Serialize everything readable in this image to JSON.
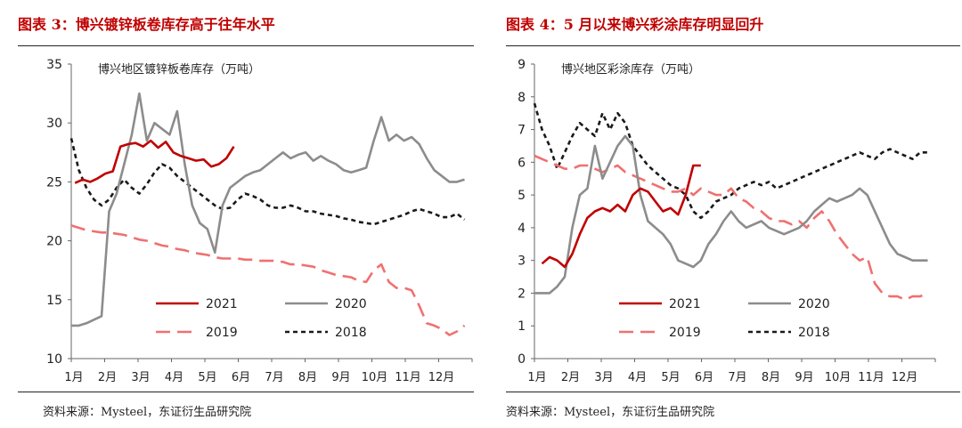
{
  "panels": [
    {
      "title": "图表 3：博兴镀锌板卷库存高于往年水平",
      "source": "资料来源：Mysteel，东证衍生品研究院",
      "chart_data": {
        "type": "line",
        "ylabel": "博兴地区镀锌板卷库存（万吨）",
        "ylim": [
          10,
          35
        ],
        "yticks": [
          10,
          15,
          20,
          25,
          30,
          35
        ],
        "xticks": [
          "1月",
          "2月",
          "3月",
          "4月",
          "5月",
          "6月",
          "7月",
          "8月",
          "9月",
          "10月",
          "11月",
          "12月"
        ],
        "xlim": [
          0,
          53
        ],
        "legend": [
          {
            "name": "2021",
            "color": "#c00000",
            "dash": "solid"
          },
          {
            "name": "2020",
            "color": "#8c8c8c",
            "dash": "solid"
          },
          {
            "name": "2019",
            "color": "#f07070",
            "dash": "long-dash"
          },
          {
            "name": "2018",
            "color": "#1a1a1a",
            "dash": "short-dash"
          }
        ],
        "series": [
          {
            "name": "2021",
            "x": [
              0.5,
              1.5,
              2.5,
              3.5,
              4.5,
              5.5,
              6.5,
              7.5,
              8.5,
              9.5,
              10.5,
              11.5,
              12.5,
              13.5,
              14.5,
              15.5,
              16.5,
              17.5,
              18.5,
              19.5,
              20.5,
              21.5
            ],
            "values": [
              24.9,
              25.2,
              25.0,
              25.3,
              25.7,
              25.9,
              28.0,
              28.2,
              28.3,
              28.0,
              28.5,
              27.9,
              28.4,
              27.5,
              27.2,
              27.0,
              26.8,
              26.9,
              26.3,
              26.5,
              27.0,
              28.0
            ]
          },
          {
            "name": "2020",
            "x": [
              0,
              1,
              2,
              3,
              4,
              5,
              6,
              7,
              8,
              9,
              10,
              11,
              12,
              13,
              14,
              15,
              16,
              17,
              18,
              19,
              20,
              21,
              22,
              23,
              24,
              25,
              26,
              27,
              28,
              29,
              30,
              31,
              32,
              33,
              34,
              35,
              36,
              37,
              38,
              39,
              40,
              41,
              42,
              43,
              44,
              45,
              46,
              47,
              48,
              49,
              50,
              51,
              52
            ],
            "values": [
              12.8,
              12.8,
              13.0,
              13.3,
              13.6,
              22.5,
              24.0,
              26.5,
              29.0,
              32.5,
              28.5,
              30.0,
              29.5,
              29.0,
              31.0,
              26.5,
              23.0,
              21.5,
              21.0,
              19.0,
              23.0,
              24.5,
              25.0,
              25.5,
              25.8,
              26.0,
              26.5,
              27.0,
              27.5,
              27.0,
              27.3,
              27.5,
              26.8,
              27.2,
              26.8,
              26.5,
              26.0,
              25.8,
              26.0,
              26.2,
              28.5,
              30.5,
              28.5,
              29.0,
              28.5,
              28.8,
              28.2,
              27.0,
              26.0,
              25.5,
              25.0,
              25.0,
              25.2
            ]
          },
          {
            "name": "2019",
            "x": [
              0,
              1,
              2,
              3,
              4,
              5,
              6,
              7,
              8,
              9,
              10,
              11,
              12,
              13,
              14,
              15,
              16,
              17,
              18,
              19,
              20,
              21,
              22,
              23,
              24,
              25,
              26,
              27,
              28,
              29,
              30,
              31,
              32,
              33,
              34,
              35,
              36,
              37,
              38,
              39,
              40,
              41,
              42,
              43,
              44,
              45,
              46,
              47,
              48,
              49,
              50,
              51,
              52
            ],
            "values": [
              21.3,
              21.1,
              20.9,
              20.8,
              20.7,
              20.7,
              20.6,
              20.5,
              20.3,
              20.1,
              20.0,
              19.8,
              19.6,
              19.5,
              19.3,
              19.2,
              19.0,
              18.9,
              18.8,
              18.6,
              18.5,
              18.5,
              18.5,
              18.4,
              18.4,
              18.3,
              18.3,
              18.3,
              18.2,
              18.0,
              18.0,
              17.9,
              17.8,
              17.5,
              17.3,
              17.1,
              17.0,
              16.9,
              16.6,
              16.5,
              17.5,
              18.0,
              16.5,
              16.0,
              16.0,
              15.8,
              14.5,
              13.0,
              12.8,
              12.5,
              12.0,
              12.3,
              12.8
            ]
          },
          {
            "name": "2018",
            "x": [
              0,
              1,
              2,
              3,
              4,
              5,
              6,
              7,
              8,
              9,
              10,
              11,
              12,
              13,
              14,
              15,
              16,
              17,
              18,
              19,
              20,
              21,
              22,
              23,
              24,
              25,
              26,
              27,
              28,
              29,
              30,
              31,
              32,
              33,
              34,
              35,
              36,
              37,
              38,
              39,
              40,
              41,
              42,
              43,
              44,
              45,
              46,
              47,
              48,
              49,
              50,
              51,
              52
            ],
            "values": [
              28.7,
              26.0,
              24.5,
              23.5,
              23.0,
              23.5,
              24.5,
              25.2,
              24.5,
              24.0,
              24.8,
              25.8,
              26.5,
              26.2,
              25.5,
              25.0,
              24.5,
              24.0,
              23.5,
              23.0,
              22.7,
              22.8,
              23.5,
              24.0,
              23.8,
              23.5,
              23.0,
              22.8,
              22.8,
              23.0,
              22.8,
              22.5,
              22.5,
              22.3,
              22.2,
              22.1,
              21.9,
              21.8,
              21.6,
              21.5,
              21.4,
              21.6,
              21.8,
              22.0,
              22.2,
              22.5,
              22.7,
              22.5,
              22.3,
              22.0,
              22.0,
              22.3,
              21.8
            ]
          }
        ]
      }
    },
    {
      "title": "图表 4：5 月以来博兴彩涂库存明显回升",
      "source": "资料来源：Mysteel，东证衍生品研究院",
      "chart_data": {
        "type": "line",
        "ylabel": "博兴地区彩涂库存（万吨）",
        "ylim": [
          0,
          9
        ],
        "yticks": [
          0,
          1,
          2,
          3,
          4,
          5,
          6,
          7,
          8,
          9
        ],
        "xticks": [
          "1月",
          "2月",
          "3月",
          "4月",
          "5月",
          "6月",
          "7月",
          "8月",
          "9月",
          "10月",
          "11月",
          "12月"
        ],
        "xlim": [
          0,
          53
        ],
        "legend": [
          {
            "name": "2021",
            "color": "#c00000",
            "dash": "solid"
          },
          {
            "name": "2020",
            "color": "#8c8c8c",
            "dash": "solid"
          },
          {
            "name": "2019",
            "color": "#f07070",
            "dash": "long-dash"
          },
          {
            "name": "2018",
            "color": "#1a1a1a",
            "dash": "short-dash"
          }
        ],
        "series": [
          {
            "name": "2021",
            "x": [
              1,
              2,
              3,
              4,
              5,
              6,
              7,
              8,
              9,
              10,
              11,
              12,
              13,
              14,
              15,
              16,
              17,
              18,
              19,
              20,
              21,
              22
            ],
            "values": [
              2.9,
              3.1,
              3.0,
              2.8,
              3.2,
              3.8,
              4.3,
              4.5,
              4.6,
              4.5,
              4.7,
              4.5,
              5.0,
              5.2,
              5.1,
              4.8,
              4.5,
              4.6,
              4.4,
              5.0,
              5.9,
              5.9
            ]
          },
          {
            "name": "2020",
            "x": [
              0,
              1,
              2,
              3,
              4,
              5,
              6,
              7,
              8,
              9,
              10,
              11,
              12,
              13,
              14,
              15,
              16,
              17,
              18,
              19,
              20,
              21,
              22,
              23,
              24,
              25,
              26,
              27,
              28,
              29,
              30,
              31,
              32,
              33,
              34,
              35,
              36,
              37,
              38,
              39,
              40,
              41,
              42,
              43,
              44,
              45,
              46,
              47,
              48,
              49,
              50,
              51,
              52
            ],
            "values": [
              2.0,
              2.0,
              2.0,
              2.2,
              2.5,
              4.0,
              5.0,
              5.2,
              6.5,
              5.5,
              6.0,
              6.5,
              6.8,
              6.5,
              5.0,
              4.2,
              4.0,
              3.8,
              3.5,
              3.0,
              2.9,
              2.8,
              3.0,
              3.5,
              3.8,
              4.2,
              4.5,
              4.2,
              4.0,
              4.1,
              4.2,
              4.0,
              3.9,
              3.8,
              3.9,
              4.0,
              4.2,
              4.5,
              4.7,
              4.9,
              4.8,
              4.9,
              5.0,
              5.2,
              5.0,
              4.5,
              4.0,
              3.5,
              3.2,
              3.1,
              3.0,
              3.0,
              3.0
            ]
          },
          {
            "name": "2019",
            "x": [
              0,
              1,
              2,
              3,
              4,
              5,
              6,
              7,
              8,
              9,
              10,
              11,
              12,
              13,
              14,
              15,
              16,
              17,
              18,
              19,
              20,
              21,
              22,
              23,
              24,
              25,
              26,
              27,
              28,
              29,
              30,
              31,
              32,
              33,
              34,
              35,
              36,
              37,
              38,
              39,
              40,
              41,
              42,
              43,
              44,
              45,
              46,
              47,
              48,
              49,
              50,
              51,
              52
            ],
            "values": [
              6.2,
              6.1,
              6.0,
              5.9,
              5.8,
              5.8,
              5.9,
              5.9,
              5.8,
              5.7,
              5.8,
              5.9,
              5.7,
              5.6,
              5.5,
              5.4,
              5.3,
              5.2,
              5.1,
              5.1,
              5.2,
              5.0,
              5.2,
              5.1,
              5.0,
              5.0,
              5.2,
              4.9,
              4.8,
              4.6,
              4.5,
              4.3,
              4.2,
              4.2,
              4.1,
              4.2,
              4.0,
              4.3,
              4.5,
              4.2,
              3.8,
              3.5,
              3.2,
              3.0,
              3.1,
              2.3,
              2.0,
              1.9,
              1.9,
              1.8,
              1.9,
              1.9,
              2.0
            ]
          },
          {
            "name": "2018",
            "x": [
              0,
              1,
              2,
              3,
              4,
              5,
              6,
              7,
              8,
              9,
              10,
              11,
              12,
              13,
              14,
              15,
              16,
              17,
              18,
              19,
              20,
              21,
              22,
              23,
              24,
              25,
              26,
              27,
              28,
              29,
              30,
              31,
              32,
              33,
              34,
              35,
              36,
              37,
              38,
              39,
              40,
              41,
              42,
              43,
              44,
              45,
              46,
              47,
              48,
              49,
              50,
              51,
              52
            ],
            "values": [
              7.8,
              7.0,
              6.5,
              5.8,
              6.3,
              6.8,
              7.2,
              7.0,
              6.8,
              7.5,
              7.0,
              7.5,
              7.2,
              6.5,
              6.2,
              5.9,
              5.7,
              5.5,
              5.3,
              5.2,
              5.0,
              4.5,
              4.3,
              4.5,
              4.8,
              4.9,
              5.0,
              5.2,
              5.3,
              5.4,
              5.3,
              5.4,
              5.2,
              5.3,
              5.4,
              5.5,
              5.6,
              5.7,
              5.8,
              5.9,
              6.0,
              6.1,
              6.2,
              6.3,
              6.2,
              6.1,
              6.3,
              6.4,
              6.3,
              6.2,
              6.1,
              6.3,
              6.3
            ]
          }
        ]
      }
    }
  ]
}
